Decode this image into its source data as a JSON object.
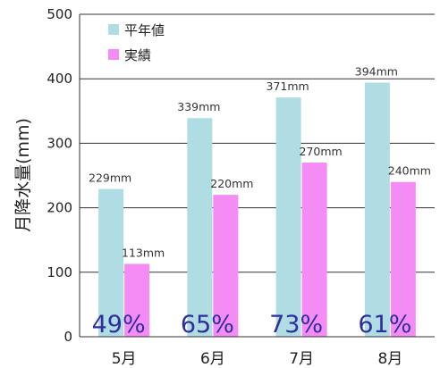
{
  "chart_data": {
    "type": "bar",
    "categories": [
      "5月",
      "6月",
      "7月",
      "8月"
    ],
    "series": [
      {
        "name": "平年値",
        "values": [
          229,
          339,
          371,
          394
        ],
        "labels": [
          "229mm",
          "339mm",
          "371mm",
          "394mm"
        ],
        "color": "#b0dce3"
      },
      {
        "name": "実績",
        "values": [
          113,
          220,
          270,
          240
        ],
        "labels": [
          "113mm",
          "220mm",
          "270mm",
          "240mm"
        ],
        "color": "#f58cf5"
      }
    ],
    "annotations": [
      "49%",
      "65%",
      "73%",
      "61%"
    ],
    "annotation_color": "#2e2e9e",
    "ylabel": "月降水量(mm)",
    "ylim": [
      0,
      500
    ],
    "yticks": [
      0,
      100,
      200,
      300,
      400,
      500
    ],
    "grid": true,
    "legend_position": "top-left"
  }
}
